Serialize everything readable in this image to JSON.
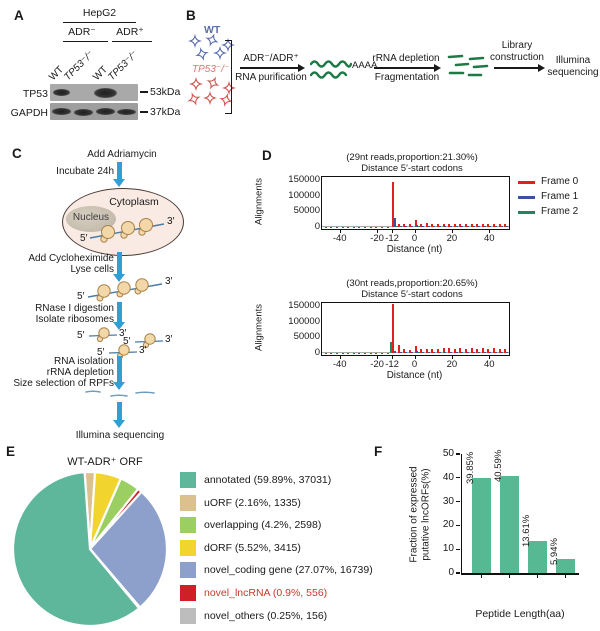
{
  "a": {
    "label": "A",
    "cell_line": "HepG2",
    "groups": [
      "ADR⁻",
      "ADR⁺"
    ],
    "lanes": [
      "WT",
      "TP53⁻/⁻",
      "WT",
      "TP53⁻/⁻"
    ],
    "rows": [
      {
        "name": "TP53",
        "marker": "53kDa"
      },
      {
        "name": "GAPDH",
        "marker": "37kDa"
      }
    ]
  },
  "b": {
    "label": "B",
    "wt_label": "WT",
    "ko_label": "TP53⁻/⁻",
    "wt_color": "#5a6cb0",
    "ko_color": "#cf544e",
    "step1_top": "ADR⁻/ADR⁺",
    "step1_bottom": "RNA purification",
    "polya": "AAAA",
    "step2_top": "rRNA depletion",
    "step2_bottom": "Fragmentation",
    "step3_top": "Library construction",
    "result": "Illumina sequencing",
    "rna_color": "#1d7a47"
  },
  "c": {
    "label": "C",
    "step_add": "Add Adriamycin",
    "step_incubate": "Incubate 24h",
    "cytoplasm": "Cytoplasm",
    "nucleus": "Nucleus",
    "five": "5′",
    "three": "3′",
    "step_chx": "Add Cycloheximide",
    "step_lyse": "Lyse cells",
    "step_rnase": "RNase I digestion",
    "step_isolate": "Isolate ribosomes",
    "step_rna": "RNA isolation",
    "step_rrna": "rRNA depletion",
    "step_size": "Size selection of RPFs",
    "step_seq": "Illumina sequencing",
    "arrow_color": "#2f9fd6"
  },
  "d": {
    "label": "D",
    "ylabel": "Alignments",
    "xlabel": "Distance (nt)",
    "ymax": 150000,
    "yticks": [
      0,
      50000,
      100000,
      150000
    ],
    "xticks": [
      -40,
      -20,
      -12,
      0,
      20,
      40
    ],
    "xrange": [
      -50,
      50
    ],
    "legend": [
      {
        "name": "Frame 0",
        "color": "#e0201b"
      },
      {
        "name": "Frame 1",
        "color": "#3a52a0"
      },
      {
        "name": "Frame 2",
        "color": "#27835e"
      }
    ],
    "charts": [
      {
        "title1": "(29nt reads,proportion:21.30%)",
        "title2": "Distance 5′-start codons",
        "bars": [
          [
            -48,
            0,
            1500
          ],
          [
            -45,
            0,
            1200
          ],
          [
            -42,
            0,
            1200
          ],
          [
            -39,
            0,
            1200
          ],
          [
            -36,
            0,
            1200
          ],
          [
            -33,
            0,
            1200
          ],
          [
            -30,
            0,
            1500
          ],
          [
            -27,
            0,
            1200
          ],
          [
            -24,
            0,
            1200
          ],
          [
            -21,
            0,
            1200
          ],
          [
            -18,
            0,
            1500
          ],
          [
            -15,
            0,
            1500
          ],
          [
            -12,
            0,
            145000
          ],
          [
            -11,
            1,
            30000
          ],
          [
            -10,
            2,
            4000
          ],
          [
            -9,
            0,
            9000
          ],
          [
            -8,
            1,
            3000
          ],
          [
            -6,
            0,
            10000
          ],
          [
            -5,
            1,
            3000
          ],
          [
            -3,
            0,
            9000
          ],
          [
            -2,
            1,
            3000
          ],
          [
            0,
            0,
            21000
          ],
          [
            1,
            1,
            6000
          ],
          [
            2,
            2,
            2500
          ],
          [
            3,
            0,
            10000
          ],
          [
            4,
            1,
            4500
          ],
          [
            6,
            0,
            12000
          ],
          [
            7,
            1,
            4500
          ],
          [
            9,
            0,
            10000
          ],
          [
            10,
            1,
            4000
          ],
          [
            12,
            0,
            9500
          ],
          [
            13,
            1,
            4000
          ],
          [
            15,
            0,
            10000
          ],
          [
            16,
            1,
            4000
          ],
          [
            18,
            0,
            9500
          ],
          [
            19,
            1,
            4500
          ],
          [
            21,
            0,
            10500
          ],
          [
            22,
            1,
            4500
          ],
          [
            24,
            0,
            11000
          ],
          [
            25,
            1,
            4500
          ],
          [
            27,
            0,
            10500
          ],
          [
            28,
            1,
            4500
          ],
          [
            30,
            0,
            11000
          ],
          [
            31,
            1,
            4500
          ],
          [
            33,
            0,
            10500
          ],
          [
            34,
            1,
            4000
          ],
          [
            36,
            0,
            10000
          ],
          [
            37,
            1,
            4000
          ],
          [
            39,
            0,
            9500
          ],
          [
            40,
            1,
            4000
          ],
          [
            42,
            0,
            9000
          ],
          [
            43,
            1,
            4000
          ],
          [
            45,
            0,
            9000
          ],
          [
            46,
            1,
            4000
          ],
          [
            48,
            0,
            9000
          ],
          [
            49,
            1,
            4000
          ]
        ]
      },
      {
        "title1": "(30nt reads,proportion:20.65%)",
        "title2": "Distance 5′-start codons",
        "bars": [
          [
            -48,
            0,
            1500
          ],
          [
            -45,
            0,
            1200
          ],
          [
            -42,
            0,
            1500
          ],
          [
            -39,
            0,
            1200
          ],
          [
            -36,
            0,
            1200
          ],
          [
            -33,
            0,
            1500
          ],
          [
            -30,
            0,
            1200
          ],
          [
            -27,
            0,
            1200
          ],
          [
            -24,
            0,
            1500
          ],
          [
            -21,
            0,
            1200
          ],
          [
            -18,
            0,
            1500
          ],
          [
            -15,
            0,
            1500
          ],
          [
            -13,
            2,
            35000
          ],
          [
            -12,
            0,
            160000
          ],
          [
            -11,
            1,
            5000
          ],
          [
            -9,
            0,
            25000
          ],
          [
            -8,
            1,
            4000
          ],
          [
            -6,
            0,
            13000
          ],
          [
            -5,
            1,
            3500
          ],
          [
            -3,
            0,
            11000
          ],
          [
            -2,
            1,
            3500
          ],
          [
            0,
            0,
            22000
          ],
          [
            1,
            1,
            5000
          ],
          [
            2,
            2,
            3000
          ],
          [
            3,
            0,
            12000
          ],
          [
            4,
            1,
            4000
          ],
          [
            6,
            0,
            14000
          ],
          [
            7,
            1,
            4000
          ],
          [
            9,
            0,
            13000
          ],
          [
            10,
            1,
            4000
          ],
          [
            12,
            0,
            14000
          ],
          [
            13,
            1,
            4000
          ],
          [
            15,
            0,
            15000
          ],
          [
            16,
            1,
            4500
          ],
          [
            18,
            0,
            15000
          ],
          [
            19,
            1,
            4500
          ],
          [
            21,
            0,
            14000
          ],
          [
            22,
            1,
            4500
          ],
          [
            24,
            0,
            15000
          ],
          [
            25,
            1,
            4500
          ],
          [
            27,
            0,
            14000
          ],
          [
            28,
            1,
            4500
          ],
          [
            30,
            0,
            15000
          ],
          [
            31,
            1,
            4500
          ],
          [
            33,
            0,
            14500
          ],
          [
            34,
            1,
            4500
          ],
          [
            36,
            0,
            15000
          ],
          [
            37,
            1,
            4500
          ],
          [
            39,
            0,
            14500
          ],
          [
            40,
            1,
            4500
          ],
          [
            42,
            0,
            15000
          ],
          [
            43,
            1,
            4500
          ],
          [
            45,
            0,
            14500
          ],
          [
            46,
            1,
            4500
          ],
          [
            48,
            0,
            14500
          ],
          [
            49,
            1,
            4500
          ]
        ]
      }
    ]
  },
  "e": {
    "label": "E",
    "title": "WT-ADR⁺ ORF",
    "slices": [
      {
        "label": "annotated (59.89%, 37031)",
        "pct": 59.89,
        "color": "#5eb79b",
        "text": "#1a1a1a"
      },
      {
        "label": "uORF (2.16%, 1335)",
        "pct": 2.16,
        "color": "#dcc18e",
        "text": "#1a1a1a"
      },
      {
        "label": "overlapping (4.2%, 2598)",
        "pct": 4.2,
        "color": "#9ccf62",
        "text": "#1a1a1a"
      },
      {
        "label": "dORF (5.52%, 3415)",
        "pct": 5.52,
        "color": "#f2d42f",
        "text": "#1a1a1a"
      },
      {
        "label": "novel_coding gene (27.07%, 16739)",
        "pct": 27.07,
        "color": "#8da0cb",
        "text": "#1a1a1a"
      },
      {
        "label": "novel_lncRNA (0.9%, 556)",
        "pct": 0.9,
        "color": "#cf2027",
        "text": "#c4392f"
      },
      {
        "label": "novel_others (0.25%, 156)",
        "pct": 0.25,
        "color": "#bdbdbd",
        "text": "#1a1a1a"
      }
    ],
    "draw_order": [
      1,
      3,
      2,
      5,
      4,
      6,
      0
    ],
    "start_angle": -94
  },
  "f": {
    "label": "F",
    "ylabel_line1": "Fraction of expressed",
    "ylabel_line2": "putative lncORFs(%)",
    "xlabel": "Peptide Length(aa)",
    "ymax": 50,
    "yticks": [
      0,
      10,
      20,
      30,
      40,
      50
    ],
    "bar_color": "#57b894",
    "bars": [
      {
        "category": "[0,50)",
        "value": 39.85,
        "label": "39.85%"
      },
      {
        "category": "[50,100)",
        "value": 40.59,
        "label": "40.59%"
      },
      {
        "category": "[100,150)",
        "value": 13.61,
        "label": "13.61%"
      },
      {
        "category": "[150,350)",
        "value": 5.94,
        "label": "5.94%"
      }
    ]
  }
}
